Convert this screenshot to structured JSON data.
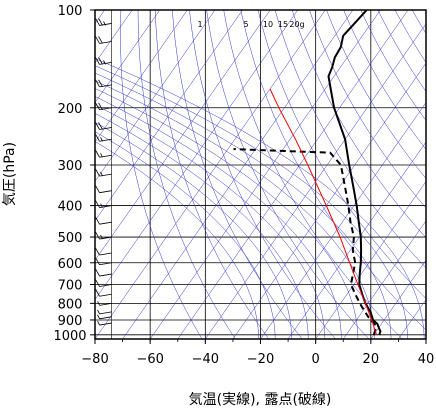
{
  "chart_data": {
    "type": "line",
    "subtype": "skew-t log-p thermodynamic diagram",
    "xlabel": "気温(実線), 露点(破線)",
    "ylabel": "気圧(hPa)",
    "xlim": [
      -80,
      40
    ],
    "ylim": [
      1030,
      100
    ],
    "y_scale": "log",
    "x_ticks": [
      -80,
      -60,
      -40,
      -20,
      0,
      20,
      40
    ],
    "x_tick_labels": [
      "−80",
      "−60",
      "−40",
      "−20",
      "0",
      "20",
      "40"
    ],
    "y_ticks": [
      100,
      200,
      300,
      400,
      500,
      600,
      700,
      800,
      900,
      1000
    ],
    "y_tick_labels": [
      "100",
      "200",
      "300",
      "400",
      "500",
      "600",
      "700",
      "800",
      "900",
      "1000"
    ],
    "grid": true,
    "mixing_ratio_labels": [
      "1",
      "5",
      "10",
      "15",
      "20g"
    ],
    "colors": {
      "temperature": "#000000",
      "dewpoint": "#000000",
      "parcel": "#ff0000",
      "adiabats": "#3333cc"
    },
    "series": [
      {
        "key": "temperature",
        "style": "solid",
        "points": [
          [
            1000,
            22
          ],
          [
            975,
            21.5
          ],
          [
            950,
            20
          ],
          [
            925,
            18.5
          ],
          [
            900,
            16
          ],
          [
            850,
            13
          ],
          [
            800,
            9
          ],
          [
            750,
            5.5
          ],
          [
            700,
            2
          ],
          [
            650,
            -0.5
          ],
          [
            600,
            -3
          ],
          [
            550,
            -6
          ],
          [
            500,
            -9.5
          ],
          [
            450,
            -14
          ],
          [
            400,
            -19
          ],
          [
            350,
            -25
          ],
          [
            300,
            -32
          ],
          [
            250,
            -40
          ],
          [
            200,
            -52
          ],
          [
            175,
            -58
          ],
          [
            160,
            -62
          ],
          [
            150,
            -63
          ],
          [
            140,
            -64.5
          ],
          [
            130,
            -65
          ],
          [
            120,
            -67
          ],
          [
            110,
            -66
          ],
          [
            100,
            -65
          ]
        ]
      },
      {
        "key": "dewpoint",
        "style": "dashed",
        "points": [
          [
            1000,
            20
          ],
          [
            975,
            19.5
          ],
          [
            950,
            19
          ],
          [
            925,
            17.5
          ],
          [
            900,
            15
          ],
          [
            850,
            11
          ],
          [
            800,
            7
          ],
          [
            750,
            3
          ],
          [
            700,
            -1
          ],
          [
            650,
            -3
          ],
          [
            600,
            -5
          ],
          [
            550,
            -9
          ],
          [
            500,
            -12
          ],
          [
            450,
            -17
          ],
          [
            400,
            -22
          ],
          [
            350,
            -28
          ],
          [
            300,
            -35
          ],
          [
            275,
            -42
          ],
          [
            268,
            -78
          ]
        ]
      },
      {
        "key": "parcel",
        "style": "solid",
        "points": [
          [
            1000,
            21
          ],
          [
            900,
            15.5
          ],
          [
            800,
            9
          ],
          [
            700,
            1.5
          ],
          [
            600,
            -7
          ],
          [
            500,
            -17
          ],
          [
            400,
            -30
          ],
          [
            300,
            -47
          ],
          [
            250,
            -58
          ],
          [
            200,
            -72
          ],
          [
            175,
            -80
          ]
        ]
      }
    ],
    "wind_profile": {
      "x_position": -74,
      "barbs": [
        {
          "p": 110,
          "dir": 270,
          "spd": 25
        },
        {
          "p": 125,
          "dir": 270,
          "spd": 20
        },
        {
          "p": 145,
          "dir": 270,
          "spd": 25
        },
        {
          "p": 170,
          "dir": 270,
          "spd": 20
        },
        {
          "p": 200,
          "dir": 270,
          "spd": 20
        },
        {
          "p": 230,
          "dir": 270,
          "spd": 20
        },
        {
          "p": 250,
          "dir": 270,
          "spd": 15
        },
        {
          "p": 280,
          "dir": 270,
          "spd": 15
        },
        {
          "p": 320,
          "dir": 270,
          "spd": 15
        },
        {
          "p": 360,
          "dir": 270,
          "spd": 10
        },
        {
          "p": 400,
          "dir": 270,
          "spd": 15
        },
        {
          "p": 450,
          "dir": 270,
          "spd": 10
        },
        {
          "p": 500,
          "dir": 270,
          "spd": 15
        },
        {
          "p": 560,
          "dir": 270,
          "spd": 10
        },
        {
          "p": 600,
          "dir": 270,
          "spd": 10
        },
        {
          "p": 650,
          "dir": 270,
          "spd": 10
        },
        {
          "p": 700,
          "dir": 270,
          "spd": 10
        },
        {
          "p": 750,
          "dir": 270,
          "spd": 10
        },
        {
          "p": 800,
          "dir": 270,
          "spd": 5
        },
        {
          "p": 850,
          "dir": 270,
          "spd": 5
        },
        {
          "p": 880,
          "dir": 250,
          "spd": 5
        },
        {
          "p": 920,
          "dir": 240,
          "spd": 5
        }
      ]
    }
  }
}
